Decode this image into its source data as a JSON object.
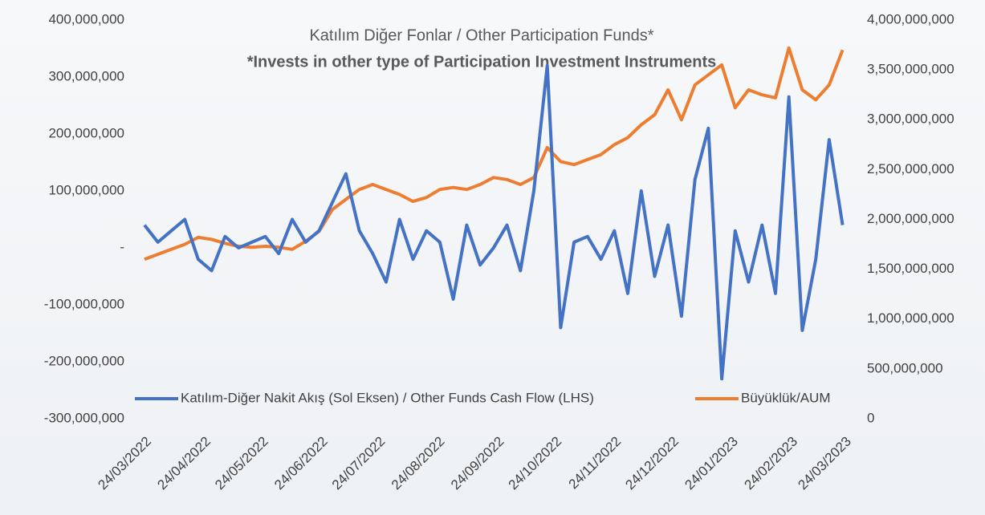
{
  "chart_data": {
    "type": "line",
    "title": "Katılım Diğer Fonlar / Other Participation Funds*",
    "subtitle": "*Invests in other type of Participation Investment Instruments",
    "x": [
      "24/03/2022",
      "31/03/2022",
      "07/04/2022",
      "14/04/2022",
      "21/04/2022",
      "28/04/2022",
      "05/05/2022",
      "12/05/2022",
      "19/05/2022",
      "26/05/2022",
      "02/06/2022",
      "09/06/2022",
      "16/06/2022",
      "23/06/2022",
      "30/06/2022",
      "07/07/2022",
      "14/07/2022",
      "21/07/2022",
      "28/07/2022",
      "04/08/2022",
      "11/08/2022",
      "18/08/2022",
      "25/08/2022",
      "01/09/2022",
      "08/09/2022",
      "15/09/2022",
      "22/09/2022",
      "29/09/2022",
      "06/10/2022",
      "13/10/2022",
      "20/10/2022",
      "27/10/2022",
      "03/11/2022",
      "10/11/2022",
      "17/11/2022",
      "24/11/2022",
      "01/12/2022",
      "08/12/2022",
      "15/12/2022",
      "22/12/2022",
      "29/12/2022",
      "05/01/2023",
      "12/01/2023",
      "19/01/2023",
      "26/01/2023",
      "02/02/2023",
      "09/02/2023",
      "16/02/2023",
      "23/02/2023",
      "02/03/2023",
      "09/03/2023",
      "16/03/2023",
      "23/03/2023"
    ],
    "series": [
      {
        "name": "Katılım-Diğer Nakit Akış (Sol Eksen) / Other Funds Cash Flow (LHS)",
        "color": "#4472c4",
        "axis": "y",
        "values": [
          40000000,
          10000000,
          30000000,
          50000000,
          -20000000,
          -40000000,
          20000000,
          0,
          10000000,
          20000000,
          -10000000,
          50000000,
          10000000,
          30000000,
          80000000,
          130000000,
          30000000,
          -10000000,
          -60000000,
          50000000,
          -20000000,
          30000000,
          10000000,
          -90000000,
          40000000,
          -30000000,
          0,
          40000000,
          -40000000,
          100000000,
          320000000,
          -140000000,
          10000000,
          20000000,
          -20000000,
          30000000,
          -80000000,
          100000000,
          -50000000,
          40000000,
          -120000000,
          120000000,
          210000000,
          -230000000,
          30000000,
          -60000000,
          40000000,
          -80000000,
          265000000,
          -145000000,
          -20000000,
          190000000,
          40000000
        ]
      },
      {
        "name": "Büyüklük/AUM",
        "color": "#ed7d31",
        "axis": "y2",
        "values": [
          1600000000,
          1650000000,
          1700000000,
          1750000000,
          1820000000,
          1800000000,
          1760000000,
          1730000000,
          1720000000,
          1730000000,
          1720000000,
          1700000000,
          1780000000,
          1880000000,
          2100000000,
          2200000000,
          2300000000,
          2350000000,
          2300000000,
          2250000000,
          2180000000,
          2220000000,
          2300000000,
          2320000000,
          2300000000,
          2350000000,
          2420000000,
          2400000000,
          2350000000,
          2420000000,
          2720000000,
          2580000000,
          2550000000,
          2600000000,
          2650000000,
          2750000000,
          2820000000,
          2950000000,
          3050000000,
          3300000000,
          3000000000,
          3350000000,
          3450000000,
          3550000000,
          3120000000,
          3300000000,
          3250000000,
          3220000000,
          3720000000,
          3300000000,
          3200000000,
          3350000000,
          3700000000
        ]
      }
    ],
    "xlim": [
      "24/03/2022",
      "24/03/2023"
    ],
    "xticks": [
      "24/03/2022",
      "24/04/2022",
      "24/05/2022",
      "24/06/2022",
      "24/07/2022",
      "24/08/2022",
      "24/09/2022",
      "24/10/2022",
      "24/11/2022",
      "24/12/2022",
      "24/01/2023",
      "24/02/2023",
      "24/03/2023"
    ],
    "ylim": [
      -300000000,
      400000000
    ],
    "yticks": [
      {
        "value": -300000000,
        "label": "-300,000,000"
      },
      {
        "value": -200000000,
        "label": "-200,000,000"
      },
      {
        "value": -100000000,
        "label": "-100,000,000"
      },
      {
        "value": 0,
        "label": "-"
      },
      {
        "value": 100000000,
        "label": "100,000,000"
      },
      {
        "value": 200000000,
        "label": "200,000,000"
      },
      {
        "value": 300000000,
        "label": "300,000,000"
      },
      {
        "value": 400000000,
        "label": "400,000,000"
      }
    ],
    "y2lim": [
      0,
      4000000000
    ],
    "y2ticks": [
      0,
      {
        "value": 500000000,
        "label": "500,000,000"
      },
      {
        "value": 1000000000,
        "label": "1,000,000,000"
      },
      {
        "value": 1500000000,
        "label": "1,500,000,000"
      },
      {
        "value": 2000000000,
        "label": "2,000,000,000"
      },
      {
        "value": 2500000000,
        "label": "2,500,000,000"
      },
      {
        "value": 3000000000,
        "label": "3,000,000,000"
      },
      {
        "value": 3500000000,
        "label": "3,500,000,000"
      },
      {
        "value": 4000000000,
        "label": "4,000,000,000"
      }
    ],
    "legend": "bottom"
  }
}
